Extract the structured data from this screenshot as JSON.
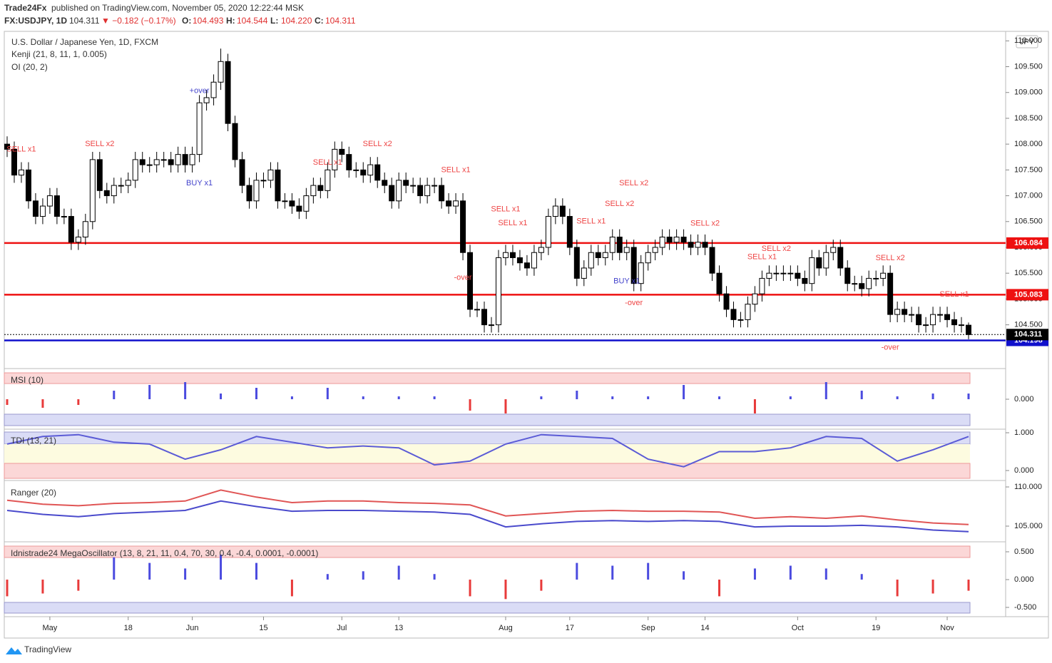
{
  "header": {
    "publisher": "Trade24Fx",
    "published": "published on TradingView.com, November 05, 2020 12:22:44 MSK",
    "symbol": "FX:USDJPY, 1D",
    "last": "104.311",
    "change": "▼ −0.182 (−0.17%)",
    "ohlc": [
      [
        "O:",
        "104.493"
      ],
      [
        "H:",
        "104.544"
      ],
      [
        "L:",
        "104.220"
      ],
      [
        "C:",
        "104.311"
      ]
    ],
    "legend": [
      "Kenji (21, 8, 11, 1, 0.005)",
      "OI (20, 2)"
    ],
    "currency": "JPY",
    "brand": "TradingView"
  },
  "chart_data": [
    {
      "type": "candlestick",
      "title": "U.S. Dollar / Japanese Yen, 1D, FXCM",
      "open": [
        108.0,
        107.9,
        107.4,
        107.5,
        106.9,
        106.6,
        106.8,
        107.0,
        106.6,
        106.6,
        106.1,
        106.2,
        106.5,
        107.7,
        107.1,
        107.0,
        107.2,
        107.2,
        107.3,
        107.7,
        107.6,
        107.6,
        107.7,
        107.7,
        107.6,
        107.8,
        107.6,
        107.8,
        108.8,
        108.9,
        109.2,
        109.6,
        108.4,
        107.7,
        107.2,
        106.9,
        107.3,
        107.3,
        107.5,
        106.9,
        106.9,
        106.8,
        106.7,
        107.0,
        107.2,
        107.1,
        107.5,
        107.9,
        107.8,
        107.5,
        107.5,
        107.4,
        107.6,
        107.3,
        107.2,
        106.9,
        107.3,
        107.2,
        107.2,
        107.0,
        107.2,
        107.2,
        106.9,
        106.8,
        106.9,
        105.9,
        104.8,
        104.8,
        104.5,
        104.5,
        105.8,
        105.9,
        105.8,
        105.7,
        105.6,
        105.9,
        106.0,
        106.6,
        106.8,
        106.6,
        106.0,
        105.4,
        105.6,
        105.9,
        105.8,
        105.9,
        106.2,
        105.9,
        106.0,
        105.3,
        105.7,
        105.9,
        106.0,
        106.2,
        106.1,
        106.2,
        106.1,
        106.0,
        106.1,
        106.0,
        105.5,
        105.1,
        104.8,
        104.6,
        104.6,
        104.9,
        105.1,
        105.4,
        105.5,
        105.5,
        105.5,
        105.5,
        105.4,
        105.3,
        105.8,
        105.6,
        105.9,
        106.0,
        105.6,
        105.3,
        105.3,
        105.2,
        105.4,
        105.4,
        105.5,
        104.7,
        104.8,
        104.7,
        104.7,
        104.5,
        104.5,
        104.7,
        104.7,
        104.6,
        104.5,
        104.493
      ],
      "high": [
        108.15,
        108.05,
        107.65,
        107.65,
        107.05,
        106.95,
        107.15,
        107.15,
        106.75,
        106.75,
        106.35,
        106.65,
        107.85,
        107.85,
        107.25,
        107.35,
        107.35,
        107.45,
        107.85,
        107.85,
        107.75,
        107.85,
        107.85,
        107.85,
        107.95,
        107.95,
        107.95,
        108.95,
        109.05,
        109.35,
        109.85,
        109.75,
        108.55,
        107.85,
        107.35,
        107.45,
        107.45,
        107.65,
        107.65,
        107.05,
        107.05,
        106.95,
        107.15,
        107.35,
        107.35,
        107.65,
        108.05,
        108.05,
        107.95,
        107.65,
        107.65,
        107.75,
        107.75,
        107.45,
        107.35,
        107.45,
        107.45,
        107.35,
        107.35,
        107.35,
        107.35,
        107.35,
        107.05,
        107.05,
        107.05,
        106.05,
        104.95,
        104.95,
        104.65,
        105.95,
        106.05,
        106.05,
        105.95,
        105.85,
        106.05,
        106.15,
        106.75,
        106.95,
        106.95,
        106.75,
        106.15,
        105.75,
        106.05,
        106.05,
        106.05,
        106.35,
        106.35,
        106.15,
        106.15,
        105.85,
        106.05,
        106.15,
        106.35,
        106.35,
        106.35,
        106.35,
        106.25,
        106.25,
        106.25,
        106.15,
        105.65,
        105.25,
        104.95,
        104.75,
        105.05,
        105.25,
        105.55,
        105.65,
        105.65,
        105.65,
        105.65,
        105.65,
        105.55,
        105.95,
        105.95,
        106.05,
        106.15,
        106.15,
        105.75,
        105.45,
        105.45,
        105.55,
        105.55,
        105.65,
        105.65,
        104.95,
        104.95,
        104.85,
        104.85,
        104.65,
        104.85,
        104.85,
        104.85,
        104.75,
        104.65,
        104.544
      ],
      "low": [
        107.75,
        107.25,
        107.25,
        106.75,
        106.45,
        106.45,
        106.65,
        106.45,
        106.45,
        105.95,
        105.95,
        106.05,
        106.35,
        106.95,
        106.85,
        106.85,
        107.05,
        107.05,
        107.15,
        107.45,
        107.45,
        107.45,
        107.55,
        107.45,
        107.45,
        107.45,
        107.45,
        107.65,
        108.65,
        108.75,
        109.05,
        108.25,
        107.55,
        107.05,
        106.75,
        106.75,
        107.15,
        107.15,
        106.75,
        106.75,
        106.65,
        106.55,
        106.55,
        106.85,
        106.95,
        106.95,
        107.35,
        107.65,
        107.35,
        107.35,
        107.25,
        107.25,
        107.15,
        107.05,
        106.75,
        106.75,
        107.05,
        107.05,
        106.85,
        106.85,
        107.05,
        106.75,
        106.65,
        106.65,
        105.75,
        104.65,
        104.65,
        104.35,
        104.35,
        104.35,
        105.65,
        105.65,
        105.55,
        105.45,
        105.45,
        105.75,
        105.85,
        106.45,
        106.45,
        105.85,
        105.25,
        105.25,
        105.45,
        105.65,
        105.65,
        105.75,
        105.75,
        105.75,
        105.15,
        105.15,
        105.55,
        105.75,
        105.85,
        105.95,
        105.95,
        105.95,
        105.85,
        105.85,
        105.85,
        105.35,
        104.95,
        104.65,
        104.45,
        104.45,
        104.45,
        104.75,
        104.95,
        105.25,
        105.35,
        105.35,
        105.35,
        105.25,
        105.15,
        105.15,
        105.45,
        105.45,
        105.75,
        105.45,
        105.15,
        105.15,
        105.05,
        105.05,
        105.25,
        105.25,
        104.55,
        104.55,
        104.55,
        104.55,
        104.35,
        104.35,
        104.35,
        104.55,
        104.45,
        104.35,
        104.35,
        104.22
      ],
      "close": [
        107.9,
        107.4,
        107.5,
        106.9,
        106.6,
        106.8,
        107.0,
        106.6,
        106.6,
        106.1,
        106.2,
        106.5,
        107.7,
        107.1,
        107.0,
        107.2,
        107.2,
        107.3,
        107.7,
        107.6,
        107.6,
        107.7,
        107.7,
        107.6,
        107.8,
        107.6,
        107.8,
        108.8,
        108.9,
        109.2,
        109.6,
        108.4,
        107.7,
        107.2,
        106.9,
        107.3,
        107.3,
        107.5,
        106.9,
        106.9,
        106.8,
        106.7,
        107.0,
        107.2,
        107.1,
        107.5,
        107.9,
        107.8,
        107.5,
        107.5,
        107.4,
        107.6,
        107.3,
        107.2,
        106.9,
        107.3,
        107.2,
        107.2,
        107.0,
        107.2,
        107.2,
        106.9,
        106.8,
        106.9,
        105.9,
        104.8,
        104.8,
        104.5,
        104.5,
        105.8,
        105.9,
        105.8,
        105.7,
        105.6,
        105.9,
        106.0,
        106.6,
        106.8,
        106.6,
        106.0,
        105.4,
        105.6,
        105.9,
        105.8,
        105.9,
        106.2,
        105.9,
        106.0,
        105.3,
        105.7,
        105.9,
        106.0,
        106.2,
        106.1,
        106.2,
        106.1,
        106.0,
        106.1,
        106.0,
        105.5,
        105.1,
        104.8,
        104.6,
        104.6,
        104.9,
        105.1,
        105.4,
        105.5,
        105.5,
        105.5,
        105.5,
        105.4,
        105.3,
        105.8,
        105.6,
        105.9,
        106.0,
        105.6,
        105.3,
        105.3,
        105.2,
        105.4,
        105.4,
        105.5,
        104.7,
        104.8,
        104.7,
        104.7,
        104.5,
        104.5,
        104.7,
        104.7,
        104.6,
        104.5,
        104.5,
        104.311
      ],
      "ylim": [
        103.68,
        110.17
      ],
      "yticks": [
        {
          "value": 110,
          "label": "110.000"
        },
        {
          "value": 109.5,
          "label": "109.500"
        },
        {
          "value": 109,
          "label": "109.000"
        },
        {
          "value": 108.5,
          "label": "108.500"
        },
        {
          "value": 108,
          "label": "108.000"
        },
        {
          "value": 107.5,
          "label": "107.500"
        },
        {
          "value": 107,
          "label": "107.000"
        },
        {
          "value": 106.5,
          "label": "106.500"
        },
        {
          "value": 106,
          "label": "106.000"
        },
        {
          "value": 105.5,
          "label": "105.500"
        },
        {
          "value": 105,
          "label": "105.000"
        },
        {
          "value": 104.5,
          "label": "104.500"
        }
      ],
      "xticks": [
        {
          "value": 6,
          "label": "May"
        },
        {
          "value": 17,
          "label": "18"
        },
        {
          "value": 26,
          "label": "Jun"
        },
        {
          "value": 36,
          "label": "15"
        },
        {
          "value": 47,
          "label": "Jul"
        },
        {
          "value": 55,
          "label": "13"
        },
        {
          "value": 70,
          "label": "Aug"
        },
        {
          "value": 79,
          "label": "17"
        },
        {
          "value": 90,
          "label": "Sep"
        },
        {
          "value": 98,
          "label": "14"
        },
        {
          "value": 111,
          "label": "Oct"
        },
        {
          "value": 122,
          "label": "19"
        },
        {
          "value": 132,
          "label": "Nov"
        }
      ],
      "levels": [
        {
          "value": 106.084,
          "color": "#ee1111"
        },
        {
          "value": 105.083,
          "color": "#ee1111"
        },
        {
          "value": 104.198,
          "color": "#1010cc"
        },
        {
          "value": 104.311,
          "color": "#000000"
        }
      ],
      "signals": [
        {
          "label": "SELL x1",
          "index": 2,
          "price": 107.9,
          "color": "#ee4444"
        },
        {
          "label": "SELL x2",
          "index": 13,
          "price": 108.0,
          "color": "#ee4444"
        },
        {
          "label": "+over",
          "index": 27,
          "price": 109.03,
          "color": "#4444cc"
        },
        {
          "label": "BUY x1",
          "index": 27,
          "price": 107.24,
          "color": "#4444cc"
        },
        {
          "label": "SELL x1",
          "index": 45,
          "price": 107.64,
          "color": "#ee4444"
        },
        {
          "label": "SELL x2",
          "index": 52,
          "price": 108.0,
          "color": "#ee4444"
        },
        {
          "label": "SELL x1",
          "index": 63,
          "price": 107.5,
          "color": "#ee4444"
        },
        {
          "label": "-over",
          "index": 64,
          "price": 105.41,
          "color": "#ee4444"
        },
        {
          "label": "SELL x1",
          "index": 70,
          "price": 106.74,
          "color": "#ee4444"
        },
        {
          "label": "SELL x1",
          "index": 71,
          "price": 106.47,
          "color": "#ee4444"
        },
        {
          "label": "SELL x1",
          "index": 82,
          "price": 106.5,
          "color": "#ee4444"
        },
        {
          "label": "SELL x2",
          "index": 86,
          "price": 106.84,
          "color": "#ee4444"
        },
        {
          "label": "SELL x2",
          "index": 88,
          "price": 107.24,
          "color": "#ee4444"
        },
        {
          "label": "BUY x1",
          "index": 87,
          "price": 105.34,
          "color": "#4444cc"
        },
        {
          "label": "-over",
          "index": 88,
          "price": 104.92,
          "color": "#ee4444"
        },
        {
          "label": "SELL x2",
          "index": 98,
          "price": 106.46,
          "color": "#ee4444"
        },
        {
          "label": "SELL x1",
          "index": 106,
          "price": 105.81,
          "color": "#ee4444"
        },
        {
          "label": "SELL x2",
          "index": 108,
          "price": 105.97,
          "color": "#ee4444"
        },
        {
          "label": "SELL x2",
          "index": 124,
          "price": 105.79,
          "color": "#ee4444"
        },
        {
          "label": "-over",
          "index": 124,
          "price": 104.06,
          "color": "#ee4444"
        },
        {
          "label": "SELL x1",
          "index": 133,
          "price": 105.09,
          "color": "#ee4444"
        }
      ]
    },
    {
      "type": "bar",
      "title": "MSI (10)",
      "values": [
        -0.1,
        -0.15,
        -0.1,
        0.15,
        0.25,
        0.3,
        0.1,
        0.2,
        0.05,
        0.2,
        0.05,
        0.05,
        0.05,
        -0.2,
        -0.25,
        0.05,
        0.15,
        0.05,
        0.05,
        0.25,
        0.05,
        -0.25,
        0.05,
        0.3,
        0.15,
        0.05,
        0.1,
        0.1
      ],
      "ylim": [
        -0.5,
        0.5
      ],
      "yticks": [
        {
          "value": 0,
          "label": "0.000"
        }
      ],
      "color_positive": "#4b4bdf",
      "color_negative": "#e83a3a"
    },
    {
      "type": "line",
      "title": "TDI (13, 21)",
      "values": [
        0.7,
        0.9,
        0.95,
        0.75,
        0.7,
        0.3,
        0.55,
        0.9,
        0.75,
        0.6,
        0.65,
        0.6,
        0.15,
        0.25,
        0.7,
        0.95,
        0.9,
        0.85,
        0.3,
        0.1,
        0.5,
        0.5,
        0.6,
        0.9,
        0.85,
        0.25,
        0.55,
        0.9
      ],
      "color": "#5b5bd6",
      "ylim": [
        -0.226,
        1.057
      ],
      "yticks": [
        {
          "value": 1,
          "label": "1.000"
        },
        {
          "value": 0,
          "label": "0.000"
        }
      ]
    },
    {
      "type": "line",
      "title": "Ranger (20)",
      "series": [
        {
          "color": "#e05555",
          "values": [
            108.3,
            107.8,
            107.6,
            107.9,
            108.0,
            108.2,
            109.6,
            108.7,
            108.0,
            108.2,
            108.2,
            108.0,
            107.9,
            107.7,
            106.3,
            106.6,
            106.9,
            107.0,
            106.9,
            106.9,
            106.8,
            106.0,
            106.2,
            106.0,
            106.3,
            105.8,
            105.4,
            105.2
          ]
        },
        {
          "color": "#4a4acc",
          "values": [
            107.0,
            106.5,
            106.2,
            106.6,
            106.8,
            107.0,
            108.2,
            107.5,
            106.9,
            107.0,
            107.0,
            106.9,
            106.8,
            106.5,
            104.9,
            105.3,
            105.6,
            105.7,
            105.6,
            105.7,
            105.6,
            104.9,
            105.0,
            105.0,
            105.1,
            104.9,
            104.5,
            104.3
          ]
        }
      ],
      "ylim": [
        103.18,
        110.64
      ],
      "yticks": [
        {
          "value": 110,
          "label": "110.000"
        },
        {
          "value": 105,
          "label": "105.000"
        }
      ]
    },
    {
      "type": "bar",
      "title": "Idnistrade24 MegaOscillator (13, 8, 21, 11, 0.4, 70, 30, 0.4, -0.4, 0.0001, -0.0001)",
      "values": [
        -0.3,
        -0.25,
        -0.2,
        0.4,
        0.3,
        0.2,
        0.45,
        0.3,
        -0.3,
        0.1,
        0.15,
        0.25,
        0.1,
        -0.3,
        -0.35,
        -0.2,
        0.3,
        0.25,
        0.3,
        0.15,
        -0.3,
        0.2,
        0.25,
        0.2,
        0.1,
        -0.3,
        -0.25,
        -0.2
      ],
      "ylim": [
        -0.628,
        0.654
      ],
      "yticks": [
        {
          "value": 0.5,
          "label": "0.500"
        },
        {
          "value": 0,
          "label": "0.000"
        },
        {
          "value": -0.5,
          "label": "-0.500"
        }
      ],
      "color_positive": "#4b4bdf",
      "color_negative": "#e83a3a"
    }
  ]
}
